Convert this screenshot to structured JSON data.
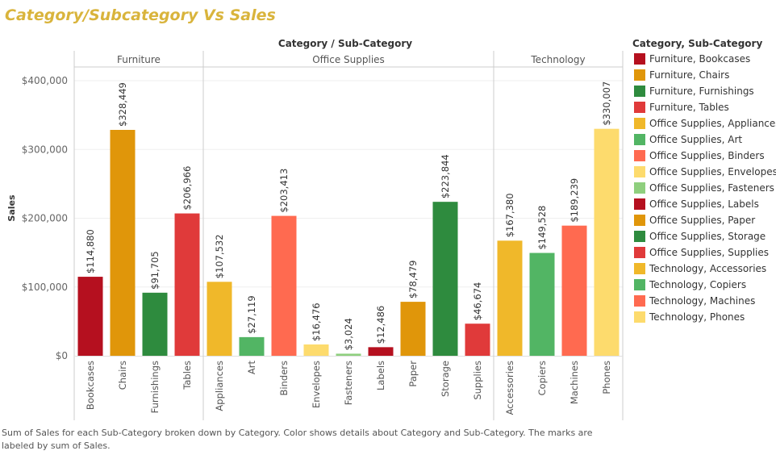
{
  "title": "Category/Subcategory Vs Sales",
  "caption": "Sum of Sales for each Sub-Category broken down by Category.  Color shows details about Category and Sub-Category.  The marks are labeled by sum of Sales.",
  "chart_data": {
    "type": "bar",
    "header_title": "Category / Sub-Category",
    "ylabel": "Sales",
    "ylim": [
      0,
      440000
    ],
    "yticks": [
      0,
      100000,
      200000,
      300000,
      400000
    ],
    "ytick_labels": [
      "$0",
      "$100,000",
      "$200,000",
      "$300,000",
      "$400,000"
    ],
    "grid": true,
    "legend_position": "right",
    "legend_title": "Category, Sub-Category",
    "groups": [
      {
        "name": "Furniture",
        "bars": [
          {
            "category": "Bookcases",
            "value": 114880,
            "label": "$114,880",
            "color": "#b5101f",
            "legend": "Furniture, Bookcases"
          },
          {
            "category": "Chairs",
            "value": 328449,
            "label": "$328,449",
            "color": "#e0960a",
            "legend": "Furniture, Chairs"
          },
          {
            "category": "Furnishings",
            "value": 91705,
            "label": "$91,705",
            "color": "#2e8b3e",
            "legend": "Furniture, Furnishings"
          },
          {
            "category": "Tables",
            "value": 206966,
            "label": "$206,966",
            "color": "#e03a3a",
            "legend": "Furniture, Tables"
          }
        ]
      },
      {
        "name": "Office Supplies",
        "bars": [
          {
            "category": "Appliances",
            "value": 107532,
            "label": "$107,532",
            "color": "#f0b82a",
            "legend": "Office Supplies, Appliances"
          },
          {
            "category": "Art",
            "value": 27119,
            "label": "$27,119",
            "color": "#52b564",
            "legend": "Office Supplies, Art"
          },
          {
            "category": "Binders",
            "value": 203413,
            "label": "$203,413",
            "color": "#ff6a50",
            "legend": "Office Supplies, Binders"
          },
          {
            "category": "Envelopes",
            "value": 16476,
            "label": "$16,476",
            "color": "#fddb6d",
            "legend": "Office Supplies, Envelopes"
          },
          {
            "category": "Fasteners",
            "value": 3024,
            "label": "$3,024",
            "color": "#8fcf7e",
            "legend": "Office Supplies, Fasteners"
          },
          {
            "category": "Labels",
            "value": 12486,
            "label": "$12,486",
            "color": "#b5101f",
            "legend": "Office Supplies, Labels"
          },
          {
            "category": "Paper",
            "value": 78479,
            "label": "$78,479",
            "color": "#e0960a",
            "legend": "Office Supplies, Paper"
          },
          {
            "category": "Storage",
            "value": 223844,
            "label": "$223,844",
            "color": "#2e8b3e",
            "legend": "Office Supplies, Storage"
          },
          {
            "category": "Supplies",
            "value": 46674,
            "label": "$46,674",
            "color": "#e03a3a",
            "legend": "Office Supplies, Supplies"
          }
        ]
      },
      {
        "name": "Technology",
        "bars": [
          {
            "category": "Accessories",
            "value": 167380,
            "label": "$167,380",
            "color": "#f0b82a",
            "legend": "Technology, Accessories"
          },
          {
            "category": "Copiers",
            "value": 149528,
            "label": "$149,528",
            "color": "#52b564",
            "legend": "Technology, Copiers"
          },
          {
            "category": "Machines",
            "value": 189239,
            "label": "$189,239",
            "color": "#ff6a50",
            "legend": "Technology, Machines"
          },
          {
            "category": "Phones",
            "value": 330007,
            "label": "$330,007",
            "color": "#fddb6d",
            "legend": "Technology, Phones"
          }
        ]
      }
    ]
  }
}
